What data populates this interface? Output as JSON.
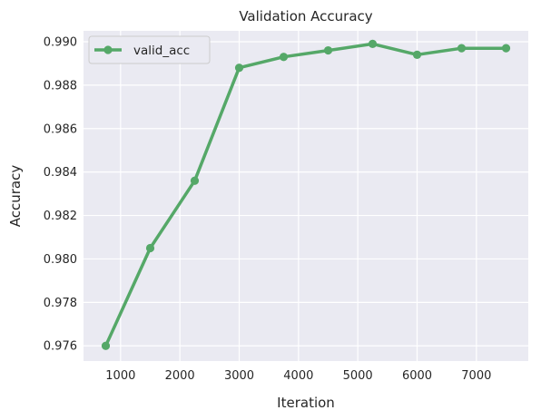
{
  "chart_data": {
    "type": "line",
    "title": "Validation Accuracy",
    "xlabel": "Iteration",
    "ylabel": "Accuracy",
    "xlim": [
      375,
      7875
    ],
    "ylim": [
      0.9753,
      0.9905
    ],
    "xticks": [
      1000,
      2000,
      3000,
      4000,
      5000,
      6000,
      7000
    ],
    "yticks": [
      0.976,
      0.978,
      0.98,
      0.982,
      0.984,
      0.986,
      0.988,
      0.99
    ],
    "grid": true,
    "legend_position": "top-left",
    "series": [
      {
        "name": "valid_acc",
        "color": "#55a868",
        "x": [
          750,
          1500,
          2250,
          3000,
          3750,
          4500,
          5250,
          6000,
          6750,
          7500
        ],
        "y": [
          0.976,
          0.9805,
          0.9836,
          0.9888,
          0.9893,
          0.9896,
          0.9899,
          0.9894,
          0.9897,
          0.9897
        ]
      }
    ]
  }
}
